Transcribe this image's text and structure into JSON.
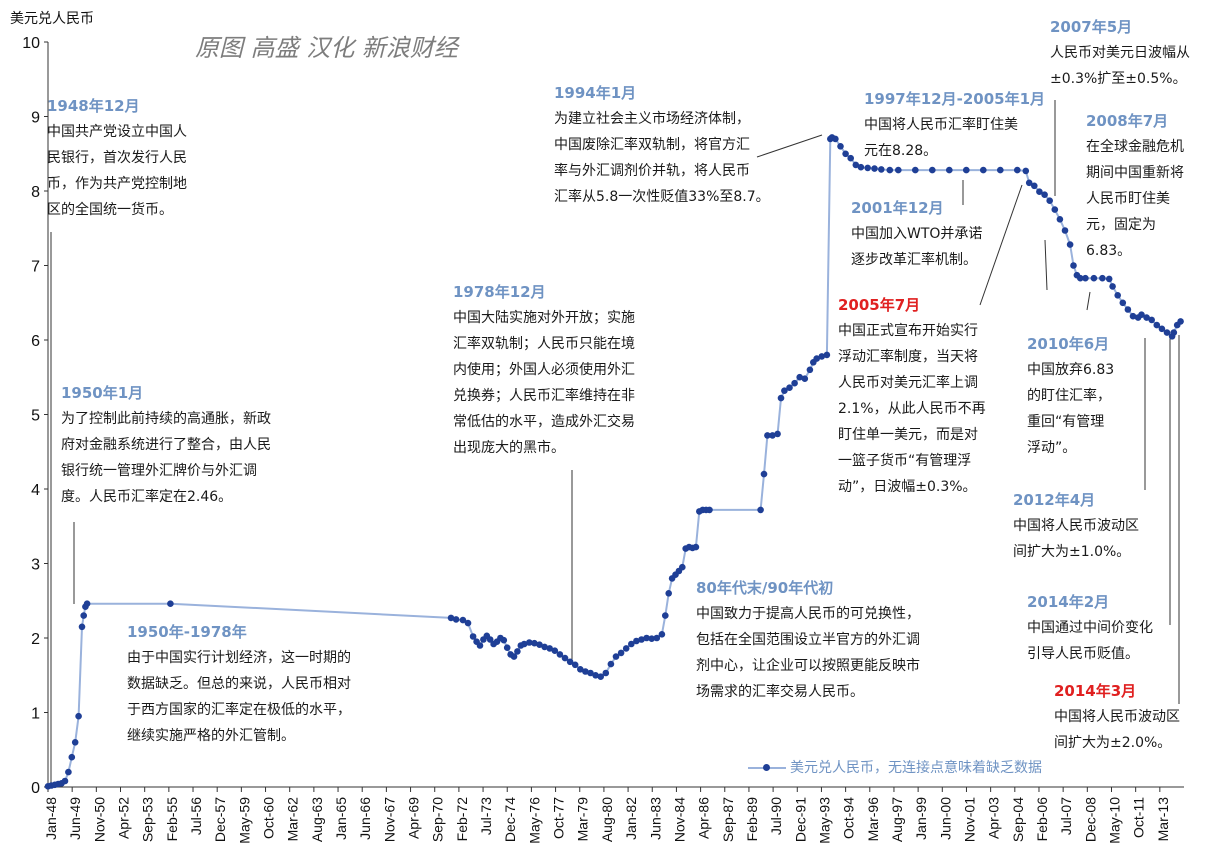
{
  "watermark": "原图 高盛  汉化 新浪财经",
  "chart_data": {
    "type": "line",
    "ylabel": "美元兑人民币",
    "ylim": [
      0,
      10
    ],
    "yticks": [
      0,
      1,
      2,
      3,
      4,
      5,
      6,
      7,
      8,
      9,
      10
    ],
    "xlim": [
      1948.0,
      2014.8
    ],
    "xticks": [
      "Jan-48",
      "Jun-49",
      "Nov-50",
      "Apr-52",
      "Sep-53",
      "Feb-55",
      "Jul-56",
      "Dec-57",
      "May-59",
      "Oct-60",
      "Mar-62",
      "Aug-63",
      "Jan-65",
      "Jun-66",
      "Nov-67",
      "Apr-69",
      "Sep-70",
      "Feb-72",
      "Jul-73",
      "Dec-74",
      "May-76",
      "Oct-77",
      "Mar-79",
      "Aug-80",
      "Jan-82",
      "Jun-83",
      "Nov-84",
      "Apr-86",
      "Sep-87",
      "Feb-89",
      "Jul-90",
      "Dec-91",
      "May-93",
      "Oct-94",
      "Mar-96",
      "Aug-97",
      "Jan-99",
      "Jun-00",
      "Nov-01",
      "Apr-03",
      "Sep-04",
      "Feb-06",
      "Jul-07",
      "Dec-08",
      "May-10",
      "Oct-11",
      "Mar-13"
    ],
    "legend": "美元兑人民币，无连接点意味着缺乏数据",
    "legend_position": "bottom-right",
    "series": [
      {
        "name": "美元兑人民币",
        "color": "#1f3f96",
        "line_color": "#9ab2dc",
        "x": [
          1948.0,
          1948.2,
          1948.4,
          1948.6,
          1948.8,
          1949.0,
          1949.2,
          1949.4,
          1949.6,
          1949.8,
          1950.0,
          1950.1,
          1950.2,
          1950.3,
          1955.2,
          1971.7,
          1972.0,
          1972.4,
          1972.7,
          1973.0,
          1973.2,
          1973.4,
          1973.6,
          1973.8,
          1974.0,
          1974.2,
          1974.4,
          1974.6,
          1974.8,
          1975.0,
          1975.2,
          1975.4,
          1975.6,
          1975.8,
          1976.0,
          1976.3,
          1976.6,
          1976.9,
          1977.2,
          1977.5,
          1977.8,
          1978.1,
          1978.4,
          1978.7,
          1979.0,
          1979.3,
          1979.6,
          1979.9,
          1980.2,
          1980.5,
          1980.8,
          1981.1,
          1981.4,
          1981.7,
          1982.0,
          1982.3,
          1982.6,
          1982.9,
          1983.2,
          1983.5,
          1983.8,
          1984.1,
          1984.3,
          1984.5,
          1984.7,
          1984.9,
          1985.1,
          1985.3,
          1985.5,
          1985.7,
          1985.9,
          1986.1,
          1986.3,
          1986.5,
          1986.7,
          1986.9,
          1989.9,
          1990.1,
          1990.3,
          1990.6,
          1990.9,
          1991.1,
          1991.3,
          1991.6,
          1991.9,
          1992.2,
          1992.5,
          1992.8,
          1993.0,
          1993.2,
          1993.5,
          1993.8,
          1994.0,
          1994.1,
          1994.3,
          1994.6,
          1994.9,
          1995.2,
          1995.5,
          1995.8,
          1996.2,
          1996.6,
          1997.0,
          1997.5,
          1998.0,
          1999.0,
          2000.0,
          2001.0,
          2002.0,
          2003.0,
          2004.0,
          2005.0,
          2005.5,
          2005.7,
          2006.0,
          2006.3,
          2006.6,
          2006.9,
          2007.2,
          2007.5,
          2007.8,
          2008.1,
          2008.3,
          2008.5,
          2008.7,
          2009.0,
          2009.5,
          2010.0,
          2010.4,
          2010.6,
          2010.9,
          2011.2,
          2011.5,
          2011.8,
          2012.1,
          2012.3,
          2012.6,
          2012.9,
          2013.2,
          2013.5,
          2013.8,
          2014.1,
          2014.2,
          2014.4,
          2014.6
        ],
        "y": [
          0.01,
          0.02,
          0.03,
          0.04,
          0.05,
          0.08,
          0.2,
          0.4,
          0.6,
          0.95,
          2.15,
          2.3,
          2.42,
          2.46,
          2.46,
          2.27,
          2.25,
          2.24,
          2.2,
          2.02,
          1.95,
          1.9,
          1.98,
          2.03,
          1.98,
          1.92,
          1.95,
          2.0,
          1.97,
          1.87,
          1.78,
          1.75,
          1.82,
          1.9,
          1.92,
          1.94,
          1.93,
          1.91,
          1.88,
          1.86,
          1.83,
          1.78,
          1.73,
          1.68,
          1.64,
          1.58,
          1.55,
          1.53,
          1.5,
          1.48,
          1.53,
          1.65,
          1.75,
          1.8,
          1.86,
          1.92,
          1.96,
          1.98,
          2.0,
          1.99,
          2.0,
          2.05,
          2.3,
          2.6,
          2.8,
          2.85,
          2.9,
          2.95,
          3.2,
          3.22,
          3.21,
          3.22,
          3.7,
          3.72,
          3.72,
          3.72,
          3.72,
          4.2,
          4.72,
          4.72,
          4.74,
          5.22,
          5.32,
          5.36,
          5.42,
          5.5,
          5.48,
          5.6,
          5.7,
          5.75,
          5.78,
          5.8,
          8.7,
          8.72,
          8.7,
          8.6,
          8.5,
          8.44,
          8.35,
          8.32,
          8.31,
          8.3,
          8.29,
          8.28,
          8.28,
          8.28,
          8.28,
          8.28,
          8.28,
          8.28,
          8.28,
          8.28,
          8.27,
          8.11,
          8.07,
          7.99,
          7.95,
          7.87,
          7.75,
          7.62,
          7.47,
          7.28,
          7.0,
          6.87,
          6.83,
          6.83,
          6.83,
          6.83,
          6.82,
          6.72,
          6.6,
          6.5,
          6.41,
          6.32,
          6.3,
          6.34,
          6.3,
          6.27,
          6.2,
          6.15,
          6.1,
          6.05,
          6.1,
          6.2,
          6.25
        ]
      }
    ],
    "annotations": [
      {
        "id": "a1948",
        "date": "1948年12月",
        "text": "中国共产党设立中国人\n民银行，首次发行人民\n币，作为共产党控制地\n区的全国统一货币。",
        "red": false
      },
      {
        "id": "a1950",
        "date": "1950年1月",
        "text": "为了控制此前持续的高通胀，新政\n府对金融系统进行了整合，由人民\n银行统一管理外汇牌价与外汇调\n度。人民币汇率定在2.46。",
        "red": false
      },
      {
        "id": "a1950_78",
        "date": "1950年-1978年",
        "text": "由于中国实行计划经济，这一时期的\n数据缺乏。但总的来说，人民币相对\n于西方国家的汇率定在极低的水平，\n继续实施严格的外汇管制。",
        "red": false
      },
      {
        "id": "a1978",
        "date": "1978年12月",
        "text": "中国大陆实施对外开放；实施\n汇率双轨制；人民币只能在境\n内使用；外国人必须使用外汇\n兑换券；人民币汇率维持在非\n常低估的水平，造成外汇交易\n出现庞大的黑市。",
        "red": false
      },
      {
        "id": "a1994",
        "date": "1994年1月",
        "text": "为建立社会主义市场经济体制，\n中国废除汇率双轨制，将官方汇\n率与外汇调剂价并轨，将人民币\n汇率从5.8一次性贬值33%至8.7。",
        "red": false
      },
      {
        "id": "a80s",
        "date": "80年代末/90年代初",
        "text": "中国致力于提高人民币的可兑换性，\n包括在全国范围设立半官方的外汇调\n剂中心，让企业可以按照更能反映市\n场需求的汇率交易人民币。",
        "red": false
      },
      {
        "id": "a1997",
        "date": "1997年12月-2005年1月",
        "text": "中国将人民币汇率盯住美\n元在8.28。",
        "red": false
      },
      {
        "id": "a2001",
        "date": "2001年12月",
        "text": "中国加入WTO并承诺\n逐步改革汇率机制。",
        "red": false
      },
      {
        "id": "a2005",
        "date": "2005年7月",
        "text": "中国正式宣布开始实行\n浮动汇率制度，当天将\n人民币对美元汇率上调\n2.1%，从此人民币不再\n盯住单一美元，而是对\n一篮子货币“有管理浮\n动”，日波幅±0.3%。",
        "red": true
      },
      {
        "id": "a2007",
        "date": "2007年5月",
        "text": "人民币对美元日波幅从\n±0.3%扩至±0.5%。",
        "red": false
      },
      {
        "id": "a2008",
        "date": "2008年7月",
        "text": "在全球金融危机\n期间中国重新将\n人民币盯住美\n元，固定为\n6.83。",
        "red": false
      },
      {
        "id": "a2010",
        "date": "2010年6月",
        "text": "中国放弃6.83\n的盯住汇率，\n重回“有管理\n浮动”。",
        "red": false
      },
      {
        "id": "a2012",
        "date": "2012年4月",
        "text": "中国将人民币波动区\n间扩大为±1.0%。",
        "red": false
      },
      {
        "id": "a2014f",
        "date": "2014年2月",
        "text": "中国通过中间价变化\n引导人民币贬值。",
        "red": false
      },
      {
        "id": "a2014m",
        "date": "2014年3月",
        "text": "中国将人民币波动区\n间扩大为±2.0%。",
        "red": true
      }
    ]
  }
}
